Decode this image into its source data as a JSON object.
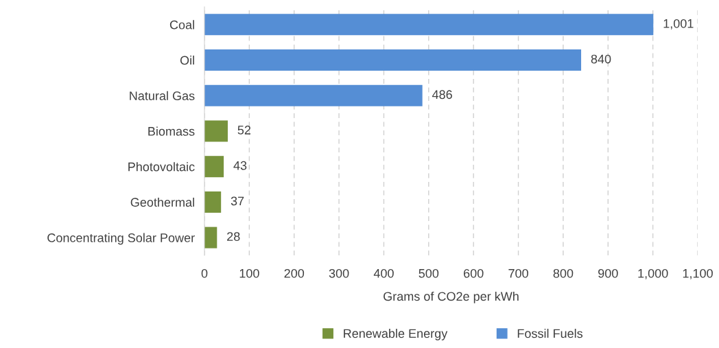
{
  "chart_data": {
    "type": "bar",
    "orientation": "horizontal",
    "xlabel": "Grams of CO2e per kWh",
    "categories": [
      "Coal",
      "Oil",
      "Natural Gas",
      "Biomass",
      "Photovoltaic",
      "Geothermal",
      "Concentrating Solar Power"
    ],
    "series": [
      {
        "name": "Renewable Energy",
        "color": "#77933c",
        "values": [
          null,
          null,
          null,
          52,
          43,
          37,
          28
        ],
        "value_labels": [
          null,
          null,
          null,
          "52",
          "43",
          "37",
          "28"
        ]
      },
      {
        "name": "Fossil Fuels",
        "color": "#558ed5",
        "values": [
          1001,
          840,
          486,
          null,
          null,
          null,
          null
        ],
        "value_labels": [
          "1,001",
          "840",
          "486",
          null,
          null,
          null,
          null
        ]
      }
    ],
    "xlim": [
      0,
      1100
    ],
    "xticks": [
      0,
      100,
      200,
      300,
      400,
      500,
      600,
      700,
      800,
      900,
      {
        "value": 1000,
        "label": "1,000"
      },
      {
        "value": 1100,
        "label": "1,100"
      }
    ],
    "grid": "x",
    "legend": "bottom"
  }
}
